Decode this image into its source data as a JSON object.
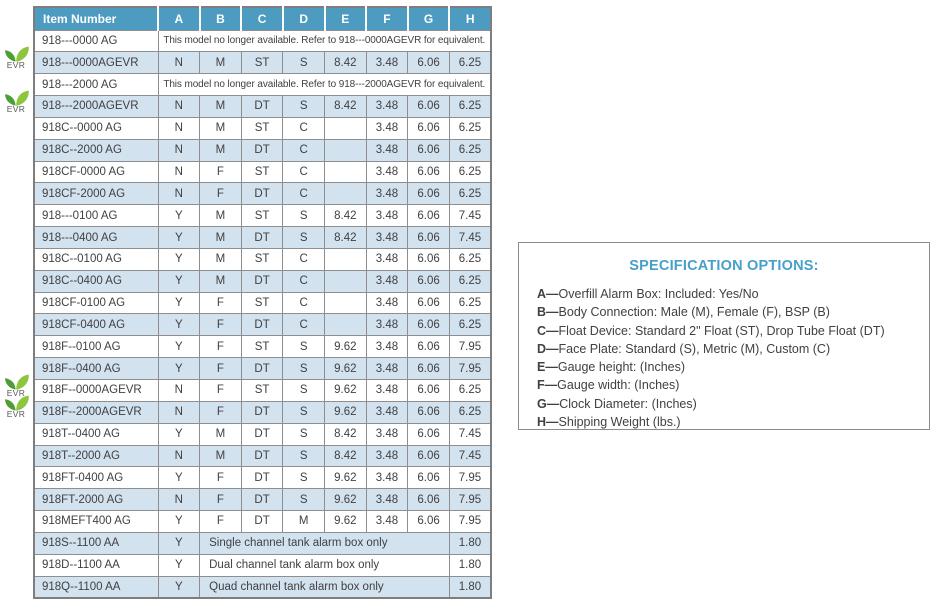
{
  "colors": {
    "header_bg": "#4d9bc1",
    "row_alt": "#d2e2ef",
    "border": "#8e8e8e",
    "outer_border": "#7e7e7e",
    "text": "#414042",
    "title_blue": "#47a0ca",
    "evr_dark": "#4f9d35",
    "evr_light": "#8cc63f"
  },
  "evr_badge_label": "EVR",
  "table": {
    "header": [
      "Item Number",
      "A",
      "B",
      "C",
      "D",
      "E",
      "F",
      "G",
      "H"
    ],
    "rows": [
      {
        "item": "918---0000 AG",
        "type": "message",
        "message": "This model no longer available. Refer to 918---0000AGEVR for equivalent."
      },
      {
        "item": "918---0000AGEVR",
        "type": "data",
        "evr": true,
        "cells": [
          "N",
          "M",
          "ST",
          "S",
          "8.42",
          "3.48",
          "6.06",
          "6.25"
        ]
      },
      {
        "item": "918---2000 AG",
        "type": "message",
        "message": "This model no longer available. Refer to 918---2000AGEVR for equivalent."
      },
      {
        "item": "918---2000AGEVR",
        "type": "data",
        "evr": true,
        "cells": [
          "N",
          "M",
          "DT",
          "S",
          "8.42",
          "3.48",
          "6.06",
          "6.25"
        ]
      },
      {
        "item": "918C--0000 AG",
        "type": "data",
        "cells": [
          "N",
          "M",
          "ST",
          "C",
          "",
          "3.48",
          "6.06",
          "6.25"
        ]
      },
      {
        "item": "918C--2000 AG",
        "type": "data",
        "cells": [
          "N",
          "M",
          "DT",
          "C",
          "",
          "3.48",
          "6.06",
          "6.25"
        ]
      },
      {
        "item": "918CF-0000 AG",
        "type": "data",
        "cells": [
          "N",
          "F",
          "ST",
          "C",
          "",
          "3.48",
          "6.06",
          "6.25"
        ]
      },
      {
        "item": "918CF-2000 AG",
        "type": "data",
        "cells": [
          "N",
          "F",
          "DT",
          "C",
          "",
          "3.48",
          "6.06",
          "6.25"
        ]
      },
      {
        "item": "918---0100 AG",
        "type": "data",
        "cells": [
          "Y",
          "M",
          "ST",
          "S",
          "8.42",
          "3.48",
          "6.06",
          "7.45"
        ]
      },
      {
        "item": "918---0400 AG",
        "type": "data",
        "cells": [
          "Y",
          "M",
          "DT",
          "S",
          "8.42",
          "3.48",
          "6.06",
          "7.45"
        ]
      },
      {
        "item": "918C--0100 AG",
        "type": "data",
        "cells": [
          "Y",
          "M",
          "ST",
          "C",
          "",
          "3.48",
          "6.06",
          "6.25"
        ]
      },
      {
        "item": "918C--0400 AG",
        "type": "data",
        "cells": [
          "Y",
          "M",
          "DT",
          "C",
          "",
          "3.48",
          "6.06",
          "6.25"
        ]
      },
      {
        "item": "918CF-0100 AG",
        "type": "data",
        "cells": [
          "Y",
          "F",
          "ST",
          "C",
          "",
          "3.48",
          "6.06",
          "6.25"
        ]
      },
      {
        "item": "918CF-0400 AG",
        "type": "data",
        "cells": [
          "Y",
          "F",
          "DT",
          "C",
          "",
          "3.48",
          "6.06",
          "6.25"
        ]
      },
      {
        "item": "918F--0100 AG",
        "type": "data",
        "cells": [
          "Y",
          "F",
          "ST",
          "S",
          "9.62",
          "3.48",
          "6.06",
          "7.95"
        ]
      },
      {
        "item": "918F--0400 AG",
        "type": "data",
        "cells": [
          "Y",
          "F",
          "DT",
          "S",
          "9.62",
          "3.48",
          "6.06",
          "7.95"
        ]
      },
      {
        "item": "918F--0000AGEVR",
        "type": "data",
        "evr": true,
        "cells": [
          "N",
          "F",
          "ST",
          "S",
          "9.62",
          "3.48",
          "6.06",
          "6.25"
        ]
      },
      {
        "item": "918F--2000AGEVR",
        "type": "data",
        "evr": true,
        "cells": [
          "N",
          "F",
          "DT",
          "S",
          "9.62",
          "3.48",
          "6.06",
          "6.25"
        ]
      },
      {
        "item": "918T--0400 AG",
        "type": "data",
        "cells": [
          "Y",
          "M",
          "DT",
          "S",
          "8.42",
          "3.48",
          "6.06",
          "7.45"
        ]
      },
      {
        "item": "918T--2000 AG",
        "type": "data",
        "cells": [
          "N",
          "M",
          "DT",
          "S",
          "8.42",
          "3.48",
          "6.06",
          "7.45"
        ]
      },
      {
        "item": "918FT-0400 AG",
        "type": "data",
        "cells": [
          "Y",
          "F",
          "DT",
          "S",
          "9.62",
          "3.48",
          "6.06",
          "7.95"
        ]
      },
      {
        "item": "918FT-2000 AG",
        "type": "data",
        "cells": [
          "N",
          "F",
          "DT",
          "S",
          "9.62",
          "3.48",
          "6.06",
          "7.95"
        ]
      },
      {
        "item": "918MEFT400 AG",
        "type": "data",
        "cells": [
          "Y",
          "F",
          "DT",
          "M",
          "9.62",
          "3.48",
          "6.06",
          "7.95"
        ]
      },
      {
        "item": "918S--1100 AA",
        "type": "alarm",
        "a": "Y",
        "message": "Single channel tank alarm box only",
        "h": "1.80"
      },
      {
        "item": "918D--1100 AA",
        "type": "alarm",
        "a": "Y",
        "message": "Dual channel tank alarm box only",
        "h": "1.80"
      },
      {
        "item": "918Q--1100 AA",
        "type": "alarm",
        "a": "Y",
        "message": "Quad channel tank alarm box only",
        "h": "1.80"
      }
    ]
  },
  "spec_box": {
    "title": "SPECIFICATION OPTIONS:",
    "dash": "—",
    "items": [
      {
        "key": "A",
        "desc": "Overfill Alarm Box: Included: Yes/No"
      },
      {
        "key": "B",
        "desc": "Body Connection: Male (M), Female (F), BSP (B)"
      },
      {
        "key": "C",
        "desc": "Float Device: Standard 2\" Float (ST), Drop Tube Float (DT)"
      },
      {
        "key": "D",
        "desc": "Face Plate: Standard (S), Metric (M), Custom (C)"
      },
      {
        "key": "E",
        "desc": "Gauge height: (Inches)"
      },
      {
        "key": "F",
        "desc": "Gauge width: (Inches)"
      },
      {
        "key": "G",
        "desc": "Clock Diameter: (Inches)"
      },
      {
        "key": "H",
        "desc": "Shipping Weight (lbs.)"
      }
    ]
  }
}
